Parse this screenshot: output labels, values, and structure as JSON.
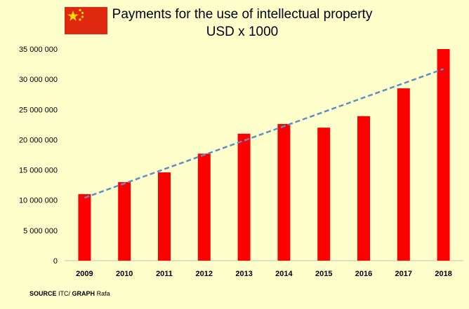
{
  "title": {
    "line1": "Payments for the use of intellectual property",
    "line2": "USD x 1000"
  },
  "flag": {
    "name": "china-flag",
    "colors": {
      "field": "#de2910",
      "stars": "#ffde00"
    }
  },
  "source": {
    "label1": "SOURCE",
    "text1": "ITC/",
    "label2": "GRAPH",
    "text2": "Rafa"
  },
  "colors": {
    "background": "#ffffcc",
    "bar": "#ff0000",
    "trend": "#5b8fc9"
  },
  "chart_data": {
    "type": "bar",
    "title": "Payments for the use of intellectual property USD x 1000",
    "categories": [
      "2009",
      "2010",
      "2011",
      "2012",
      "2013",
      "2014",
      "2015",
      "2016",
      "2017",
      "2018"
    ],
    "values": [
      11000000,
      13000000,
      14600000,
      17700000,
      21000000,
      22600000,
      22000000,
      23900000,
      28500000,
      35000000
    ],
    "ylim": [
      0,
      35000000
    ],
    "yticks": [
      0,
      5000000,
      10000000,
      15000000,
      20000000,
      25000000,
      30000000,
      35000000
    ],
    "ytick_labels": [
      "0",
      "5 000 000",
      "10 000 000",
      "15 000 000",
      "20 000 000",
      "25 000 000",
      "30 000 000",
      "35 000 000"
    ],
    "grid": false,
    "trendline": {
      "type": "linear",
      "style": "dashed",
      "start": 10400000,
      "end": 31700000
    },
    "xlabel": "",
    "ylabel": ""
  }
}
